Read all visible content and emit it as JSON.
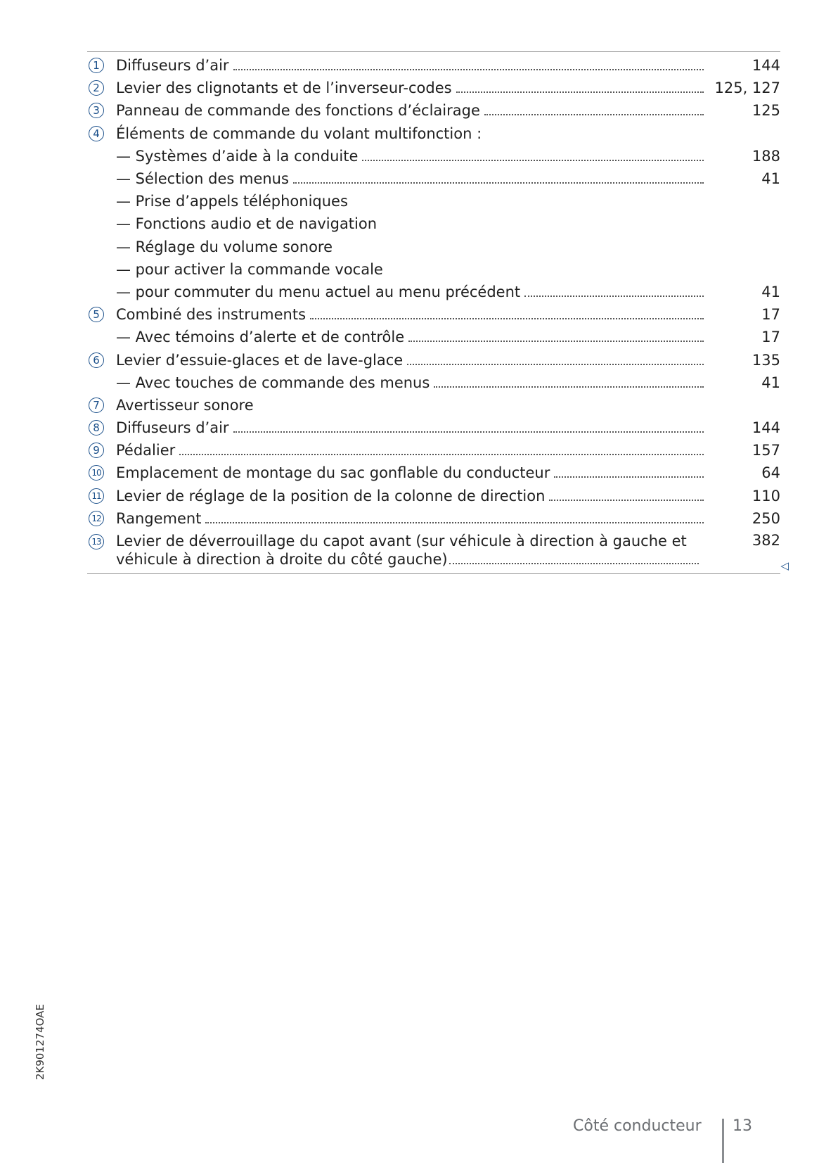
{
  "items": [
    {
      "num": "1",
      "text": "Diffuseurs d’air",
      "page": "144"
    },
    {
      "num": "2",
      "text": "Levier des clignotants et de l’inverseur-codes",
      "page": "125, 127"
    },
    {
      "num": "3",
      "text": "Panneau de commande des fonctions d’éclairage",
      "page": "125"
    },
    {
      "num": "4",
      "text": "Éléments de commande du volant multifonction :",
      "page": ""
    },
    {
      "num": "",
      "text": "— Systèmes d’aide à la conduite",
      "page": "188"
    },
    {
      "num": "",
      "text": "— Sélection des menus",
      "page": "41"
    },
    {
      "num": "",
      "text": "— Prise d’appels téléphoniques",
      "page": ""
    },
    {
      "num": "",
      "text": "— Fonctions audio et de navigation",
      "page": ""
    },
    {
      "num": "",
      "text": "— Réglage du volume sonore",
      "page": ""
    },
    {
      "num": "",
      "text": "— pour activer la commande vocale",
      "page": ""
    },
    {
      "num": "",
      "text": "— pour commuter du menu actuel au menu précédent",
      "page": "41"
    },
    {
      "num": "5",
      "text": "Combiné des instruments",
      "page": "17"
    },
    {
      "num": "",
      "text": "— Avec témoins d’alerte et de contrôle",
      "page": "17"
    },
    {
      "num": "6",
      "text": "Levier d’essuie-glaces et de lave-glace",
      "page": "135"
    },
    {
      "num": "",
      "text": "— Avec touches de commande des menus",
      "page": "41"
    },
    {
      "num": "7",
      "text": "Avertisseur sonore",
      "page": ""
    },
    {
      "num": "8",
      "text": "Diffuseurs d’air",
      "page": "144"
    },
    {
      "num": "9",
      "text": "Pédalier",
      "page": "157"
    },
    {
      "num": "10",
      "text": "Emplacement de montage du sac gonflable du conducteur",
      "page": "64"
    },
    {
      "num": "11",
      "text": "Levier de réglage de la position de la colonne de direction",
      "page": "110"
    },
    {
      "num": "12",
      "text": "Rangement",
      "page": "250"
    }
  ],
  "last_item": {
    "num": "13",
    "text": "Levier de déverrouillage du capot avant (sur véhicule à direction à gauche et véhicule à direction à droite du côté gauche)",
    "page": "382"
  },
  "end_marker_icon": "triangle-left-icon",
  "image_code": "2K901274OAE",
  "footer": {
    "section": "Côté conducteur",
    "page": "13"
  },
  "colors": {
    "accent": "#1a4f8a",
    "footer": "#6b6e72"
  }
}
